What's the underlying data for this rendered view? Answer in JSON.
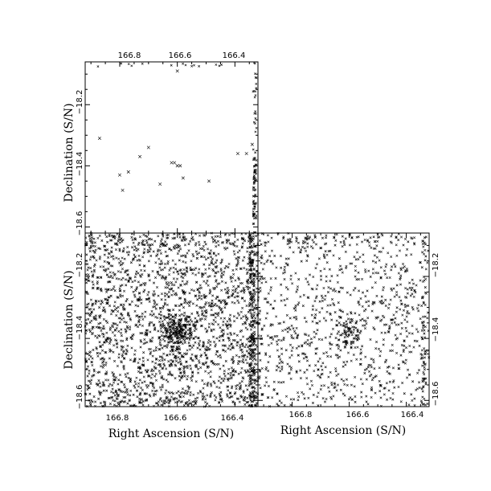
{
  "chart_data": [
    {
      "type": "scatter",
      "panel": "top-left",
      "xlabel": "",
      "ylabel": "Declination (S/N)",
      "xlim": [
        166.92,
        166.32
      ],
      "ylim": [
        -18.62,
        -18.06
      ],
      "x_ticks": [
        166.8,
        166.6,
        166.4
      ],
      "x_tick_position": "top",
      "y_ticks": [
        -18.2,
        -18.4,
        -18.6
      ],
      "y_tick_position": "left",
      "marker": "x",
      "points_description": "sparse x markers with a dense strip along the right edge",
      "points": [
        [
          166.6,
          -18.09
        ],
        [
          166.7,
          -18.34
        ],
        [
          166.66,
          -18.46
        ],
        [
          166.61,
          -18.39
        ],
        [
          166.6,
          -18.4
        ],
        [
          166.62,
          -18.39
        ],
        [
          166.59,
          -18.4
        ],
        [
          166.77,
          -18.42
        ],
        [
          166.8,
          -18.43
        ],
        [
          166.73,
          -18.37
        ],
        [
          166.87,
          -18.31
        ],
        [
          166.79,
          -18.48
        ],
        [
          166.49,
          -18.45
        ],
        [
          166.39,
          -18.36
        ],
        [
          166.34,
          -18.33
        ],
        [
          166.36,
          -18.36
        ],
        [
          166.58,
          -18.44
        ]
      ]
    },
    {
      "type": "scatter",
      "panel": "bottom-left",
      "xlabel": "Right Ascension (S/N)",
      "ylabel": "Declination (S/N)",
      "xlim": [
        166.92,
        166.32
      ],
      "ylim": [
        -18.62,
        -18.06
      ],
      "x_ticks": [
        166.8,
        166.6,
        166.4
      ],
      "y_ticks": [
        -18.2,
        -18.4,
        -18.6
      ],
      "marker": "x",
      "points_description": "dense field of x markers with a concentration near RA 166.6, Dec -18.4"
    },
    {
      "type": "scatter",
      "panel": "bottom-right",
      "xlabel": "Right Ascension (S/N)",
      "ylabel": "",
      "xlim": [
        166.92,
        166.32
      ],
      "ylim": [
        -18.62,
        -18.06
      ],
      "x_ticks": [
        166.8,
        166.6,
        166.4
      ],
      "y_ticks": [
        -18.2,
        -18.4,
        -18.6
      ],
      "y_tick_position": "right",
      "marker": "x",
      "points_description": "moderately dense field of x markers with a knot near RA 166.6, Dec -18.4"
    }
  ],
  "labels": {
    "top_ylabel": "Declination (S/N)",
    "bl_ylabel": "Declination (S/N)",
    "bl_xlabel": "Right Ascension (S/N)",
    "br_xlabel": "Right Ascension (S/N)",
    "xt1": "166.8",
    "xt2": "166.6",
    "xt3": "166.4",
    "yt1": "−18.2",
    "yt2": "−18.4",
    "yt3": "−18.6"
  }
}
